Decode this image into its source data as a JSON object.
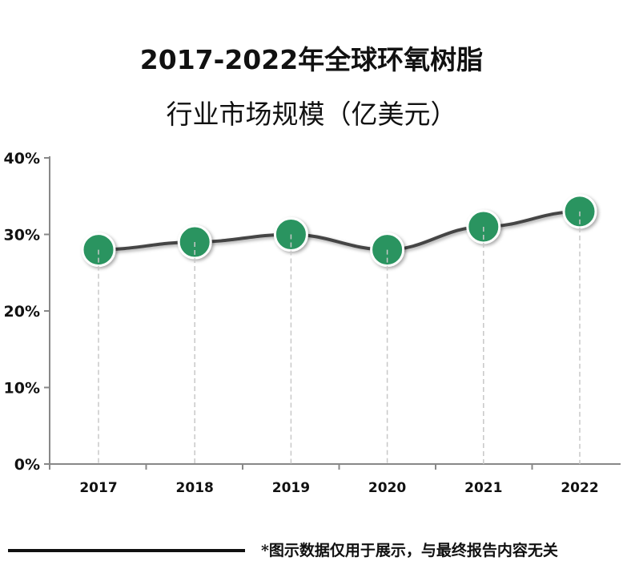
{
  "title_line1": "2017-2022年全球环氧树脂",
  "title_line2": "行业市场规模（亿美元）",
  "footnote": "*图示数据仅用于展示，与最终报告内容无关",
  "colors": {
    "marker": "#2a9460",
    "line": "#444444"
  },
  "chart_data": {
    "type": "line",
    "title": "2017-2022年全球环氧树脂行业市场规模（亿美元）",
    "categories": [
      "2017",
      "2018",
      "2019",
      "2020",
      "2021",
      "2022"
    ],
    "values": [
      28,
      29,
      30,
      28,
      31,
      33
    ],
    "ylim": [
      0,
      40
    ],
    "yticks": [
      "0%",
      "10%",
      "20%",
      "30%",
      "40%"
    ],
    "ytick_values": [
      0,
      10,
      20,
      30,
      40
    ],
    "xlabel": "",
    "ylabel": ""
  }
}
